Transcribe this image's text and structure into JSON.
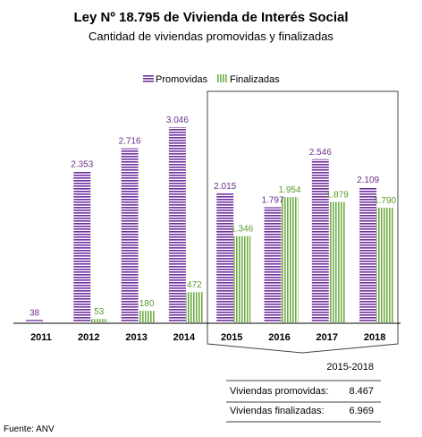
{
  "title": "Ley Nº 18.795 de Vivienda de Interés Social",
  "subtitle": "Cantidad de viviendas promovidas y finalizadas",
  "legend": {
    "promovidas": "Promovidas",
    "finalizadas": "Finalizadas",
    "placement": "top-center"
  },
  "colors": {
    "promovidas": "#7030a0",
    "finalizadas": "#70ad47",
    "promovidas_label": "#6b2f8a",
    "finalizadas_label": "#5a9a2c"
  },
  "chart_data": {
    "type": "bar",
    "categories": [
      "2011",
      "2012",
      "2013",
      "2014",
      "2015",
      "2016",
      "2017",
      "2018"
    ],
    "series": [
      {
        "name": "Promovidas",
        "values": [
          38,
          2353,
          2716,
          3046,
          2015,
          1797,
          2546,
          2109
        ],
        "labels": [
          "38",
          "2.353",
          "2.716",
          "3.046",
          "2.015",
          "1.797",
          "2.546",
          "2.109"
        ]
      },
      {
        "name": "Finalizadas",
        "values": [
          null,
          53,
          180,
          472,
          1346,
          1954,
          1879,
          1790
        ],
        "labels": [
          "",
          "53",
          "180",
          "472",
          "1.346",
          "1.954",
          "1.879",
          "1.790"
        ]
      }
    ],
    "ylim": [
      0,
      3200
    ],
    "grid": false,
    "highlight_range": [
      "2015",
      "2018"
    ]
  },
  "summary": {
    "header": "2015-2018",
    "rows": [
      {
        "label": "Viviendas promovidas:",
        "value": "8.467"
      },
      {
        "label": "Viviendas finalizadas:",
        "value": "6.969"
      }
    ]
  },
  "source": "Fuente: ANV"
}
